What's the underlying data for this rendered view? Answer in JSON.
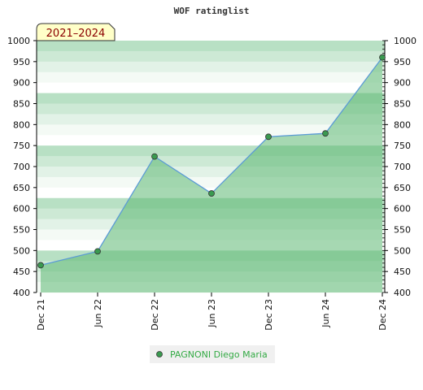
{
  "chart_data": {
    "type": "area",
    "title": "WOF ratinglist",
    "badge": "2021–2024",
    "x": [
      "Dec 21",
      "Jun 22",
      "Dec 22",
      "Jun 23",
      "Dec 23",
      "Jun 24",
      "Dec 24"
    ],
    "series": [
      {
        "name": "PAGNONI Diego Maria",
        "values": [
          465,
          498,
          724,
          636,
          771,
          779,
          960
        ]
      }
    ],
    "ylim": [
      400,
      1000
    ],
    "yticks": [
      400,
      450,
      500,
      550,
      600,
      650,
      700,
      750,
      800,
      850,
      900,
      950,
      1000
    ],
    "grid": false,
    "legend_placement": "bottom",
    "colors": {
      "line": "#5b9bd5",
      "area": "#5cb873",
      "marker": "#3a9a50",
      "badge_bg": "#ffffc8",
      "legend_text": "#33aa44"
    }
  }
}
